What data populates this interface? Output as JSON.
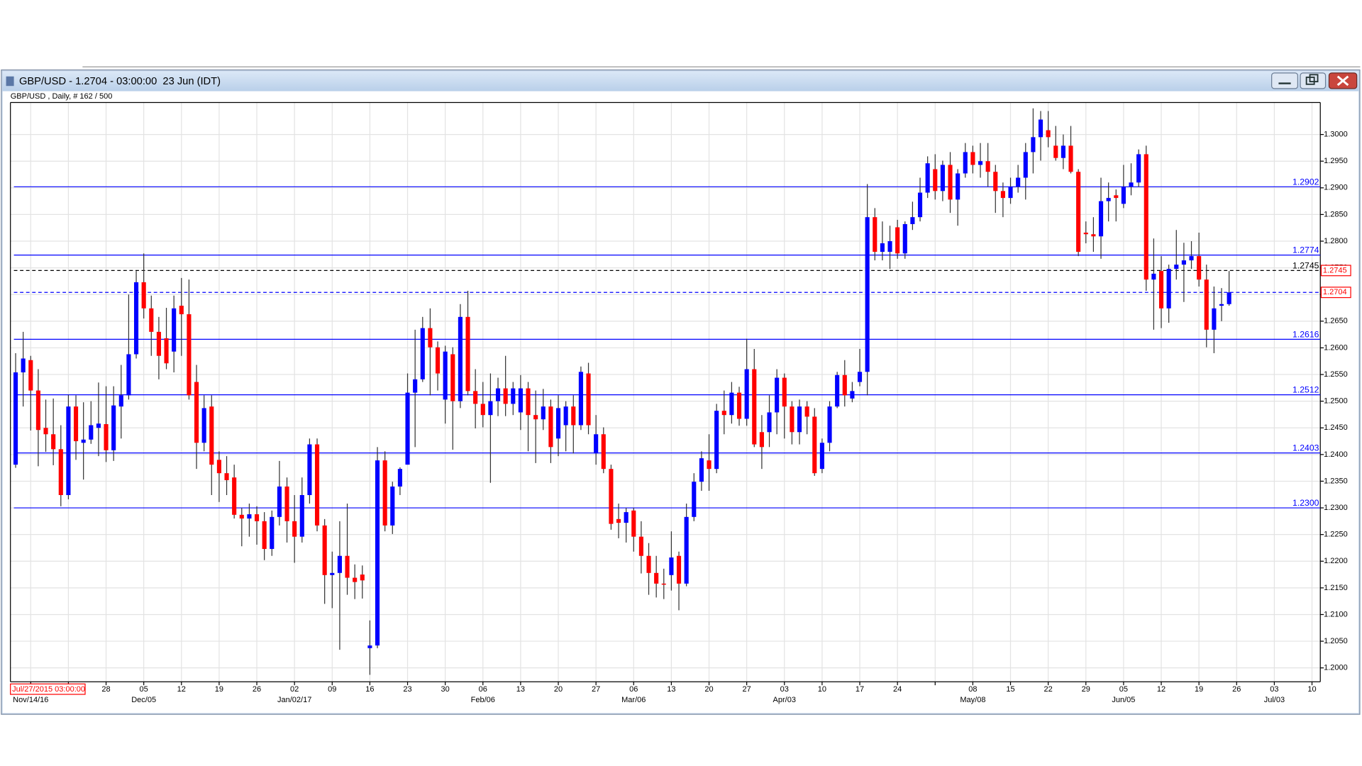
{
  "window": {
    "title": "GBP/USD - 1.2704 - 03:00:00  23 Jun (IDT)"
  },
  "chart_data": {
    "type": "candlestick",
    "subtitle": "GBP/USD , Daily, # 162 / 500",
    "cursor_label": "Jul/27/2015 03:00:00",
    "categories": [
      null,
      null,
      null,
      null,
      null,
      null,
      null,
      null,
      null,
      null,
      null,
      null,
      "28",
      null,
      null,
      null,
      null,
      "05",
      null,
      null,
      null,
      null,
      "12",
      null,
      null,
      null,
      null,
      "19",
      null,
      null,
      null,
      null,
      "26",
      null,
      null,
      null,
      null,
      "02",
      null,
      null,
      null,
      null,
      "09",
      null,
      null,
      null,
      null,
      "16",
      null,
      null,
      null,
      null,
      "23",
      null,
      null,
      null,
      null,
      "30",
      null,
      null,
      null,
      null,
      "06",
      null,
      null,
      null,
      null,
      "13",
      null,
      null,
      null,
      null,
      "20",
      null,
      null,
      null,
      null,
      "27",
      null,
      null,
      null,
      null,
      "06",
      null,
      null,
      null,
      null,
      "13",
      null,
      null,
      null,
      null,
      "20",
      null,
      null,
      null,
      null,
      "27",
      null,
      null,
      null,
      null,
      "03",
      null,
      null,
      null,
      null,
      "10",
      null,
      null,
      null,
      null,
      "17",
      null,
      null,
      null,
      null,
      "24",
      null,
      null,
      null,
      null,
      null,
      null,
      null,
      null,
      null,
      "08",
      null,
      null,
      null,
      null,
      "15",
      null,
      null,
      null,
      null,
      "22",
      null,
      null,
      null,
      null,
      "29",
      null,
      null,
      null,
      null,
      "05",
      null,
      null,
      null,
      null,
      "12",
      null,
      null,
      null,
      null,
      "19",
      null,
      null,
      null,
      null,
      "26",
      null,
      null,
      null,
      null,
      "03",
      null,
      null,
      null,
      null,
      "10"
    ],
    "category_months": [
      null,
      null,
      "Nov/14/16",
      null,
      null,
      null,
      null,
      null,
      null,
      null,
      null,
      null,
      null,
      null,
      null,
      null,
      null,
      "Dec/05",
      null,
      null,
      null,
      null,
      null,
      null,
      null,
      null,
      null,
      null,
      null,
      null,
      null,
      null,
      null,
      null,
      null,
      null,
      null,
      "Jan/02/17",
      null,
      null,
      null,
      null,
      null,
      null,
      null,
      null,
      null,
      null,
      null,
      null,
      null,
      null,
      null,
      null,
      null,
      null,
      null,
      null,
      null,
      null,
      null,
      null,
      "Feb/06",
      null,
      null,
      null,
      null,
      null,
      null,
      null,
      null,
      null,
      null,
      null,
      null,
      null,
      null,
      null,
      null,
      null,
      null,
      null,
      "Mar/06",
      null,
      null,
      null,
      null,
      null,
      null,
      null,
      null,
      null,
      null,
      null,
      null,
      null,
      null,
      null,
      null,
      null,
      null,
      null,
      "Apr/03",
      null,
      null,
      null,
      null,
      null,
      null,
      null,
      null,
      null,
      null,
      null,
      null,
      null,
      null,
      null,
      null,
      null,
      null,
      null,
      null,
      null,
      null,
      null,
      null,
      "May/08",
      null,
      null,
      null,
      null,
      null,
      null,
      null,
      null,
      null,
      null,
      null,
      null,
      null,
      null,
      null,
      null,
      null,
      null,
      null,
      "Jun/05",
      null,
      null,
      null,
      null,
      null,
      null,
      null,
      null,
      null,
      null,
      null,
      null,
      null,
      null,
      null,
      null,
      null,
      null,
      null,
      "Jul/03",
      null,
      null,
      null,
      null,
      null
    ],
    "open": [
      1.2381,
      1.2554,
      1.2577,
      1.252,
      1.245,
      1.2438,
      1.241,
      1.2324,
      1.249,
      1.2422,
      1.2428,
      1.245,
      1.2457,
      1.2408,
      1.249,
      1.2511,
      1.2588,
      1.2723,
      1.2674,
      1.263,
      1.2618,
      1.2593,
      1.2679,
      1.2663,
      1.2536,
      1.2422,
      1.249,
      1.239,
      1.2365,
      1.2357,
      1.2287,
      1.228,
      1.2288,
      1.2275,
      1.2223,
      1.2283,
      1.234,
      1.2275,
      1.2246,
      1.2324,
      1.2419,
      1.2267,
      1.2174,
      1.2178,
      1.221,
      1.2169,
      1.2175,
      1.2037,
      1.2042,
      1.2389,
      1.2267,
      1.234,
      1.2381,
      1.2516,
      1.2541,
      1.2637,
      1.2601,
      1.2503,
      1.2588,
      1.25,
      1.2658,
      1.2519,
      1.2495,
      1.2474,
      1.25,
      1.2524,
      1.2495,
      1.2479,
      1.2524,
      1.2474,
      1.2466,
      1.249,
      1.243,
      1.2455,
      1.249,
      1.2455,
      1.2552,
      1.2402,
      1.2438,
      1.2373,
      1.2279,
      1.2272,
      1.2295,
      1.2246,
      1.221,
      1.2178,
      1.2158,
      1.2174,
      1.221,
      1.2158,
      1.2283,
      1.2349,
      1.2389,
      1.2373,
      1.2482,
      1.2474,
      1.2516,
      1.2467,
      1.256,
      1.2442,
      1.2442,
      1.2479,
      1.2544,
      1.249,
      1.2442,
      1.249,
      1.2471,
      1.2373,
      1.2422,
      1.249,
      1.2549,
      1.2505,
      1.2536,
      1.2555,
      1.2845,
      1.278,
      1.278,
      1.2826,
      1.2777,
      1.2832,
      1.2845,
      1.2891,
      1.2935,
      1.2894,
      1.2943,
      1.2878,
      1.2927,
      1.2967,
      1.2943,
      1.295,
      1.293,
      1.2894,
      1.2881,
      1.2902,
      1.2919,
      1.2967,
      1.2995,
      1.3008,
      1.2979,
      1.2956,
      1.2979,
      1.293,
      1.2816,
      1.2813,
      1.2809,
      1.2875,
      1.2886,
      1.287,
      1.2902,
      1.291,
      1.2963,
      1.2728,
      1.2744,
      1.2674,
      1.2748,
      1.2756,
      1.2764,
      1.2772,
      1.2728,
      1.2634,
      1.2679,
      1.2682,
      null,
      null,
      null,
      null,
      null,
      null,
      null,
      null,
      null,
      null,
      null
    ],
    "high": [
      1.259,
      1.263,
      1.2585,
      1.256,
      1.2503,
      1.2505,
      1.2455,
      1.2512,
      1.2511,
      1.2498,
      1.25,
      1.2535,
      1.2528,
      1.2528,
      1.2568,
      1.27,
      1.2744,
      1.2777,
      1.2698,
      1.2658,
      1.2675,
      1.2698,
      1.2731,
      1.2728,
      1.2568,
      1.2511,
      1.2511,
      1.2406,
      1.2397,
      1.2381,
      1.23,
      1.2308,
      1.2303,
      1.2292,
      1.2295,
      1.2388,
      1.2357,
      1.2324,
      1.2357,
      1.243,
      1.243,
      1.2279,
      1.2218,
      1.2275,
      1.2308,
      1.2194,
      1.2192,
      1.2089,
      1.2414,
      1.2406,
      1.2349,
      1.2376,
      1.2552,
      1.2634,
      1.2658,
      1.2674,
      1.2612,
      1.2604,
      1.2601,
      1.2682,
      1.2707,
      1.256,
      1.2536,
      1.2552,
      1.2544,
      1.2585,
      1.2536,
      1.2549,
      1.2536,
      1.252,
      1.2523,
      1.2503,
      1.2511,
      1.25,
      1.2511,
      1.2565,
      1.2572,
      1.2474,
      1.2451,
      1.2381,
      1.2308,
      1.23,
      1.23,
      1.2275,
      1.2234,
      1.221,
      1.2186,
      1.2256,
      1.2218,
      1.2308,
      1.2365,
      1.2406,
      1.2438,
      1.2495,
      1.252,
      1.2536,
      1.2527,
      1.2617,
      1.2598,
      1.2474,
      1.2511,
      1.256,
      1.2552,
      1.25,
      1.2503,
      1.25,
      1.2487,
      1.243,
      1.25,
      1.2555,
      1.2577,
      1.2536,
      1.2598,
      1.2907,
      1.2862,
      1.2837,
      1.2829,
      1.284,
      1.2837,
      1.2874,
      1.2919,
      1.2959,
      1.2963,
      1.2951,
      1.2967,
      1.2935,
      1.2984,
      1.2979,
      1.2984,
      1.2984,
      1.2943,
      1.291,
      1.2919,
      1.2943,
      1.2984,
      1.3049,
      1.3044,
      1.3044,
      1.3016,
      1.3,
      1.3016,
      1.2935,
      1.2837,
      1.2845,
      1.2919,
      1.291,
      1.2897,
      1.2943,
      1.2946,
      1.2972,
      1.2979,
      1.2805,
      1.2772,
      1.2756,
      1.2821,
      1.2797,
      1.28,
      1.2816,
      1.2756,
      1.2715,
      1.2712,
      1.2744,
      null,
      null,
      null,
      null,
      null,
      null,
      null,
      null,
      null,
      null,
      null
    ],
    "low": [
      1.2375,
      1.249,
      1.2445,
      1.2378,
      1.2405,
      1.238,
      1.2303,
      1.2316,
      1.239,
      1.2353,
      1.242,
      1.2397,
      1.2386,
      1.2388,
      1.243,
      1.2503,
      1.258,
      1.2655,
      1.2585,
      1.2541,
      1.256,
      1.2554,
      1.2585,
      1.2503,
      1.2373,
      1.2406,
      1.2324,
      1.2311,
      1.2324,
      1.228,
      1.2228,
      1.2246,
      1.2231,
      1.2202,
      1.221,
      1.2267,
      1.2235,
      1.2197,
      1.2235,
      1.2308,
      1.2256,
      1.212,
      1.2112,
      1.2034,
      1.2137,
      1.2129,
      1.213,
      1.1987,
      1.2037,
      1.2256,
      1.2251,
      1.2324,
      1.2381,
      1.2414,
      1.2536,
      1.2511,
      1.252,
      1.2458,
      1.2409,
      1.2487,
      1.2511,
      1.2449,
      1.2451,
      1.2347,
      1.2472,
      1.2472,
      1.2474,
      1.2446,
      1.2406,
      1.2384,
      1.2446,
      1.2384,
      1.2397,
      1.2406,
      1.2402,
      1.2446,
      1.2438,
      1.2381,
      1.2365,
      1.2259,
      1.2243,
      1.2235,
      1.2218,
      1.2177,
      1.2137,
      1.2132,
      1.2129,
      1.2145,
      1.2108,
      1.2153,
      1.2275,
      1.2332,
      1.2332,
      1.2365,
      1.2438,
      1.2458,
      1.2454,
      1.2454,
      1.2414,
      1.2373,
      1.2414,
      1.2438,
      1.243,
      1.2419,
      1.2419,
      1.2438,
      1.236,
      1.2365,
      1.2406,
      1.2487,
      1.249,
      1.2498,
      1.2528,
      1.2511,
      1.2764,
      1.2764,
      1.2748,
      1.2767,
      1.2767,
      1.2821,
      1.2837,
      1.2881,
      1.2878,
      1.2875,
      1.2853,
      1.2829,
      1.2919,
      1.2927,
      1.2919,
      1.2902,
      1.2853,
      1.2845,
      1.287,
      1.2891,
      1.2878,
      1.2927,
      1.2951,
      1.2976,
      1.2951,
      1.2935,
      1.2927,
      1.2772,
      1.2796,
      1.278,
      1.2767,
      1.2837,
      1.2837,
      1.2862,
      1.2886,
      1.2902,
      1.2707,
      1.2634,
      1.2637,
      1.2647,
      1.2728,
      1.2686,
      1.2748,
      1.2715,
      1.2601,
      1.259,
      1.265,
      1.2679,
      null,
      null,
      null,
      null,
      null,
      null,
      null,
      null,
      null,
      null,
      null
    ],
    "close": [
      1.2554,
      1.258,
      1.252,
      1.2446,
      1.2438,
      1.241,
      1.2324,
      1.249,
      1.2425,
      1.2428,
      1.2455,
      1.2458,
      1.2408,
      1.2492,
      1.2511,
      1.2588,
      1.2723,
      1.2674,
      1.263,
      1.2585,
      1.2571,
      1.2674,
      1.2663,
      1.2511,
      1.2422,
      1.2487,
      1.2381,
      1.2365,
      1.2352,
      1.2287,
      1.228,
      1.2288,
      1.2275,
      1.2223,
      1.2283,
      1.234,
      1.2275,
      1.2246,
      1.2324,
      1.2419,
      1.2267,
      1.2174,
      1.2178,
      1.221,
      1.2169,
      1.2161,
      1.2164,
      1.2042,
      1.2389,
      1.2267,
      1.234,
      1.2373,
      1.2516,
      1.2541,
      1.2637,
      1.2601,
      1.2552,
      1.2593,
      1.25,
      1.2658,
      1.2519,
      1.2495,
      1.2474,
      1.25,
      1.2524,
      1.2495,
      1.2524,
      1.2524,
      1.2474,
      1.2466,
      1.249,
      1.2414,
      1.2487,
      1.249,
      1.2455,
      1.2555,
      1.2455,
      1.2438,
      1.2373,
      1.227,
      1.2272,
      1.2292,
      1.2246,
      1.221,
      1.2178,
      1.2158,
      1.2156,
      1.2207,
      1.2158,
      1.2283,
      1.2349,
      1.2393,
      1.2373,
      1.2482,
      1.2474,
      1.2516,
      1.2467,
      1.256,
      1.2419,
      1.2414,
      1.2479,
      1.2544,
      1.249,
      1.2442,
      1.249,
      1.2471,
      1.2365,
      1.2422,
      1.249,
      1.2549,
      1.2511,
      1.2519,
      1.2555,
      1.2845,
      1.278,
      1.2796,
      1.28,
      1.2777,
      1.2832,
      1.2845,
      1.2891,
      1.2946,
      1.2894,
      1.2943,
      1.2878,
      1.2927,
      1.2967,
      1.2943,
      1.295,
      1.293,
      1.2894,
      1.2881,
      1.2902,
      1.2919,
      1.2967,
      1.2995,
      1.3028,
      1.2995,
      1.2956,
      1.2979,
      1.293,
      1.278,
      1.2813,
      1.2809,
      1.2875,
      1.2881,
      1.2881,
      1.2902,
      1.291,
      1.2963,
      1.2728,
      1.2739,
      1.2674,
      1.2748,
      1.2756,
      1.2764,
      1.2772,
      1.2728,
      1.2634,
      1.2674,
      1.2682,
      1.2704,
      null,
      null,
      null,
      null,
      null,
      null,
      null,
      null,
      null,
      null,
      null
    ],
    "up_color": "#0000ff",
    "down_color": "#ff0000",
    "wick_color": "#333333",
    "ylim": [
      1.1974,
      1.306
    ],
    "yticks": [
      {
        "value": 1.3,
        "label": "1.3000"
      },
      {
        "value": 1.295,
        "label": "1.2950"
      },
      {
        "value": 1.29,
        "label": "1.2900"
      },
      {
        "value": 1.285,
        "label": "1.2850"
      },
      {
        "value": 1.28,
        "label": "1.2800"
      },
      {
        "value": 1.275,
        "label": "1.2750"
      },
      {
        "value": 1.27,
        "label": "1.2700"
      },
      {
        "value": 1.265,
        "label": "1.2650"
      },
      {
        "value": 1.26,
        "label": "1.2600"
      },
      {
        "value": 1.255,
        "label": "1.2550"
      },
      {
        "value": 1.25,
        "label": "1.2500"
      },
      {
        "value": 1.245,
        "label": "1.2450"
      },
      {
        "value": 1.24,
        "label": "1.2400"
      },
      {
        "value": 1.235,
        "label": "1.2350"
      },
      {
        "value": 1.23,
        "label": "1.2300"
      },
      {
        "value": 1.225,
        "label": "1.2250"
      },
      {
        "value": 1.22,
        "label": "1.2200"
      },
      {
        "value": 1.215,
        "label": "1.2150"
      },
      {
        "value": 1.21,
        "label": "1.2100"
      },
      {
        "value": 1.205,
        "label": "1.2050"
      },
      {
        "value": 1.2,
        "label": "1.2000"
      }
    ],
    "grid": true,
    "levels": [
      1.2902,
      1.2774,
      1.2616,
      1.2512,
      1.2403,
      {
        "value": 1.23,
        "label": "1.2300"
      }
    ],
    "level_color": "#0000ff",
    "marker_level": 1.2745,
    "marker_color": "#000000",
    "last_price": 1.2704,
    "last_price_color": "#0000ff"
  }
}
